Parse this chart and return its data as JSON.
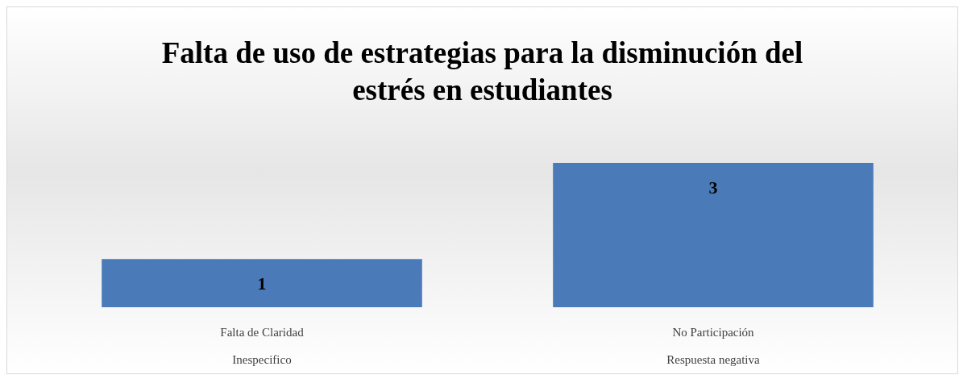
{
  "chart_data": {
    "type": "bar",
    "title": "Falta de uso de estrategias para la disminución del\nestrés en estudiantes",
    "categories": [
      "Falta de Claridad\nInespecifico",
      "No Participación\nRespuesta negativa"
    ],
    "values": [
      1,
      3
    ],
    "color": "#4a7bb8",
    "data_labels": true,
    "tick_labels": "x"
  }
}
